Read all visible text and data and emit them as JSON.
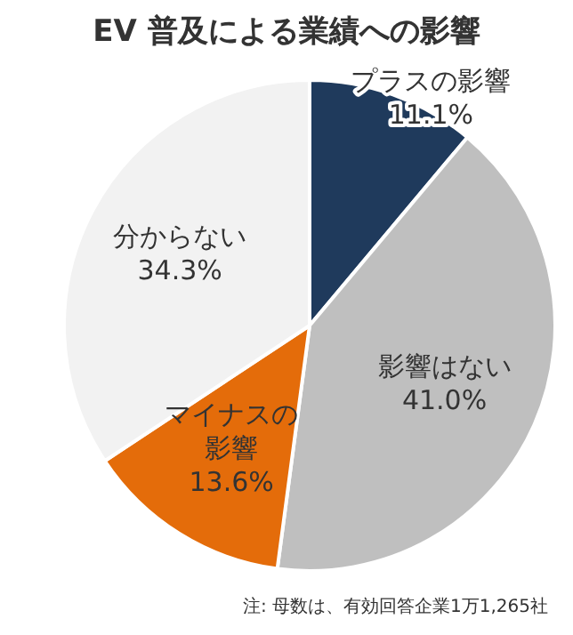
{
  "chart_data": {
    "type": "pie",
    "title": "EV 普及による業績への影響",
    "categories": [
      "プラスの影響",
      "影響はない",
      "マイナスの影響",
      "分からない"
    ],
    "values": [
      11.1,
      41.0,
      13.6,
      34.3
    ],
    "value_labels": [
      "11.1%",
      "41.0%",
      "13.6%",
      "34.3%"
    ],
    "colors": [
      "#1f3a5c",
      "#bfbfbf",
      "#e46c0a",
      "#f2f2f2"
    ],
    "legend": false,
    "annotations": [
      "注: 母数は、有効回答企業1万1,265社"
    ]
  }
}
